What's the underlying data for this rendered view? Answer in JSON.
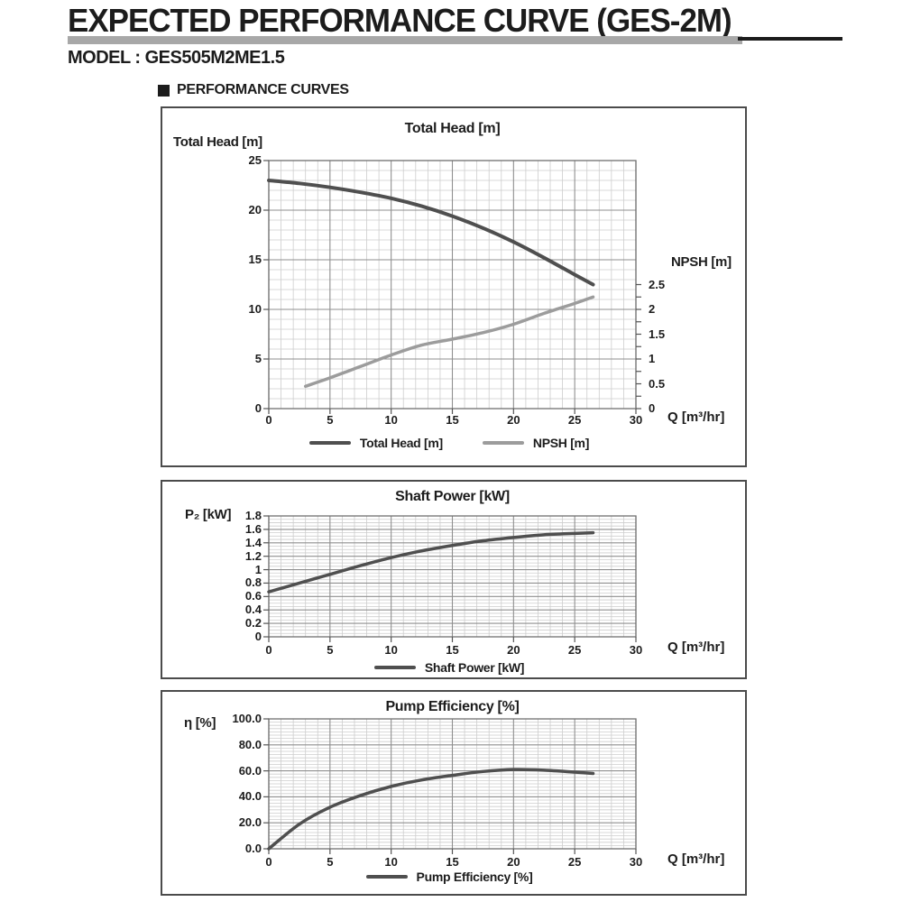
{
  "page": {
    "title": "EXPECTED PERFORMANCE CURVE (GES-2M)",
    "model": "MODEL : GES505M2ME1.5",
    "section": "PERFORMANCE CURVES"
  },
  "colors": {
    "curve_dark": "#4f4f4f",
    "curve_gray": "#9c9c9c",
    "grid_minor": "#cdcdcd",
    "grid_major": "#8f8f8f",
    "axis": "#6f6f6f",
    "box_border": "#4b4b4b",
    "underline_gray": "#a8a8a8",
    "underline_black": "#1c1c1c"
  },
  "chart_data": [
    {
      "type": "line",
      "title": "Total Head [m]",
      "ylabel": "Total Head [m]",
      "y2label": "NPSH [m]",
      "xlabel": "Q [m³/hr]",
      "xlim": [
        0,
        30
      ],
      "ylim": [
        0,
        25
      ],
      "y2lim": [
        0,
        5
      ],
      "x_minor": 1,
      "x_major": 5,
      "y_minor": 1,
      "y_major": 5,
      "y2_minor": 0.25,
      "grid": true,
      "legend_position": "bottom",
      "x_ticks": [
        {
          "v": 0,
          "label": "0"
        },
        {
          "v": 5,
          "label": "5"
        },
        {
          "v": 10,
          "label": "10"
        },
        {
          "v": 15,
          "label": "15"
        },
        {
          "v": 20,
          "label": "20"
        },
        {
          "v": 25,
          "label": "25"
        },
        {
          "v": 30,
          "label": "30"
        }
      ],
      "y_ticks": [
        {
          "v": 0,
          "label": "0"
        },
        {
          "v": 5,
          "label": "5"
        },
        {
          "v": 10,
          "label": "10"
        },
        {
          "v": 15,
          "label": "15"
        },
        {
          "v": 20,
          "label": "20"
        },
        {
          "v": 25,
          "label": "25"
        }
      ],
      "y2_ticks": [
        {
          "v": 0,
          "label": "0"
        },
        {
          "v": 0.5,
          "label": "0.5"
        },
        {
          "v": 1,
          "label": "1"
        },
        {
          "v": 1.5,
          "label": "1.5"
        },
        {
          "v": 2,
          "label": "2"
        },
        {
          "v": 2.5,
          "label": "2.5"
        }
      ],
      "series": [
        {
          "name": "Total Head [m]",
          "axis": "y",
          "color": "#4f4f4f",
          "width": 4,
          "x": [
            0,
            2.5,
            5,
            7.5,
            10,
            12.5,
            15,
            17.5,
            20,
            22.5,
            25,
            26.5
          ],
          "y": [
            23.0,
            22.7,
            22.3,
            21.8,
            21.2,
            20.4,
            19.4,
            18.2,
            16.8,
            15.2,
            13.5,
            12.5
          ]
        },
        {
          "name": "NPSH [m]",
          "axis": "y2",
          "color": "#9c9c9c",
          "width": 3.5,
          "x": [
            3,
            5,
            7.5,
            10,
            12.5,
            15,
            17.5,
            20,
            22.5,
            25,
            26.5
          ],
          "y": [
            0.45,
            0.62,
            0.85,
            1.08,
            1.28,
            1.4,
            1.53,
            1.7,
            1.92,
            2.12,
            2.25
          ]
        }
      ]
    },
    {
      "type": "line",
      "title": "Shaft Power [kW]",
      "ylabel": "P₂ [kW]",
      "xlabel": "Q [m³/hr]",
      "xlim": [
        0,
        30
      ],
      "ylim": [
        0,
        1.8
      ],
      "x_minor": 1,
      "x_major": 5,
      "y_minor": 0.05,
      "y_major": 0.2,
      "grid": true,
      "legend_position": "bottom",
      "x_ticks": [
        {
          "v": 0,
          "label": "0"
        },
        {
          "v": 5,
          "label": "5"
        },
        {
          "v": 10,
          "label": "10"
        },
        {
          "v": 15,
          "label": "15"
        },
        {
          "v": 20,
          "label": "20"
        },
        {
          "v": 25,
          "label": "25"
        },
        {
          "v": 30,
          "label": "30"
        }
      ],
      "y_ticks": [
        {
          "v": 0,
          "label": "0"
        },
        {
          "v": 0.2,
          "label": "0.2"
        },
        {
          "v": 0.4,
          "label": "0.4"
        },
        {
          "v": 0.6,
          "label": "0.6"
        },
        {
          "v": 0.8,
          "label": "0.8"
        },
        {
          "v": 1,
          "label": "1"
        },
        {
          "v": 1.2,
          "label": "1.2"
        },
        {
          "v": 1.4,
          "label": "1.4"
        },
        {
          "v": 1.6,
          "label": "1.6"
        },
        {
          "v": 1.8,
          "label": "1.8"
        }
      ],
      "series": [
        {
          "name": "Shaft Power [kW]",
          "axis": "y",
          "color": "#4f4f4f",
          "width": 3.5,
          "x": [
            0,
            2.5,
            5,
            7.5,
            10,
            12.5,
            15,
            17.5,
            20,
            22.5,
            25,
            26.5
          ],
          "y": [
            0.67,
            0.8,
            0.93,
            1.06,
            1.18,
            1.28,
            1.36,
            1.43,
            1.48,
            1.52,
            1.54,
            1.55
          ]
        }
      ]
    },
    {
      "type": "line",
      "title": "Pump Efficiency [%]",
      "ylabel": "η [%]",
      "xlabel": "Q [m³/hr]",
      "xlim": [
        0,
        30
      ],
      "ylim": [
        0,
        100
      ],
      "x_minor": 1,
      "x_major": 5,
      "y_minor": 2.5,
      "y_major": 20,
      "grid": true,
      "legend_position": "bottom",
      "x_ticks": [
        {
          "v": 0,
          "label": "0"
        },
        {
          "v": 5,
          "label": "5"
        },
        {
          "v": 10,
          "label": "10"
        },
        {
          "v": 15,
          "label": "15"
        },
        {
          "v": 20,
          "label": "20"
        },
        {
          "v": 25,
          "label": "25"
        },
        {
          "v": 30,
          "label": "30"
        }
      ],
      "y_ticks": [
        {
          "v": 0,
          "label": "0.0"
        },
        {
          "v": 20,
          "label": "20.0"
        },
        {
          "v": 40,
          "label": "40.0"
        },
        {
          "v": 60,
          "label": "60.0"
        },
        {
          "v": 80,
          "label": "80.0"
        },
        {
          "v": 100,
          "label": "100.0"
        }
      ],
      "series": [
        {
          "name": "Pump Efficiency [%]",
          "axis": "y",
          "color": "#4f4f4f",
          "width": 3.5,
          "x": [
            0,
            2.5,
            5,
            7.5,
            10,
            12.5,
            15,
            17.5,
            20,
            22.5,
            25,
            26.5
          ],
          "y": [
            0,
            19,
            32,
            41,
            48,
            53,
            56.5,
            59.5,
            61,
            60.5,
            59,
            58
          ]
        }
      ]
    }
  ]
}
